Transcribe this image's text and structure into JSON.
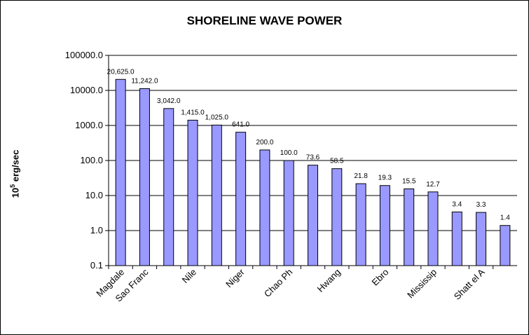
{
  "chart_data": {
    "type": "bar",
    "title": "SHORELINE WAVE POWER",
    "ylabel_main": "10",
    "ylabel_sup": "5",
    "ylabel_unit": "erg/sec",
    "yscale": "log",
    "ylim": [
      0.1,
      100000
    ],
    "yticks": [
      "0.1",
      "1.0",
      "10.0",
      "100.0",
      "1000.0",
      "10000.0",
      "100000.0"
    ],
    "grid": true,
    "bar_color": "#9999ff",
    "categories": [
      "Magdalena",
      "Sao Francisco",
      "",
      "Nile",
      "",
      "Niger",
      "",
      "Chao Phraya",
      "",
      "Hwang Ho",
      "",
      "Ebro",
      "",
      "Mississippi",
      "",
      "Shatt el Arab",
      ""
    ],
    "categories_visible": [
      "Magdale",
      "Sao Franc",
      "",
      "Nile",
      "",
      "Niger",
      "",
      "Chao Ph",
      "",
      "Hwang",
      "",
      "Ebro",
      "",
      "Mississip",
      "",
      "Shatt el A",
      ""
    ],
    "values": [
      20625,
      11242,
      3042,
      1415,
      1025,
      641,
      200,
      100,
      73.6,
      58.5,
      21.8,
      19.3,
      15.5,
      12.7,
      3.4,
      3.3,
      1.4
    ],
    "value_labels": [
      "20,625.0",
      "11,242.0",
      "3,042.0",
      "1,415.0",
      "1,025.0",
      "641.0",
      "200.0",
      "100.0",
      "73.6",
      "58.5",
      "21.8",
      "19.3",
      "15.5",
      "12.7",
      "3.4",
      "3.3",
      "1.4"
    ]
  }
}
